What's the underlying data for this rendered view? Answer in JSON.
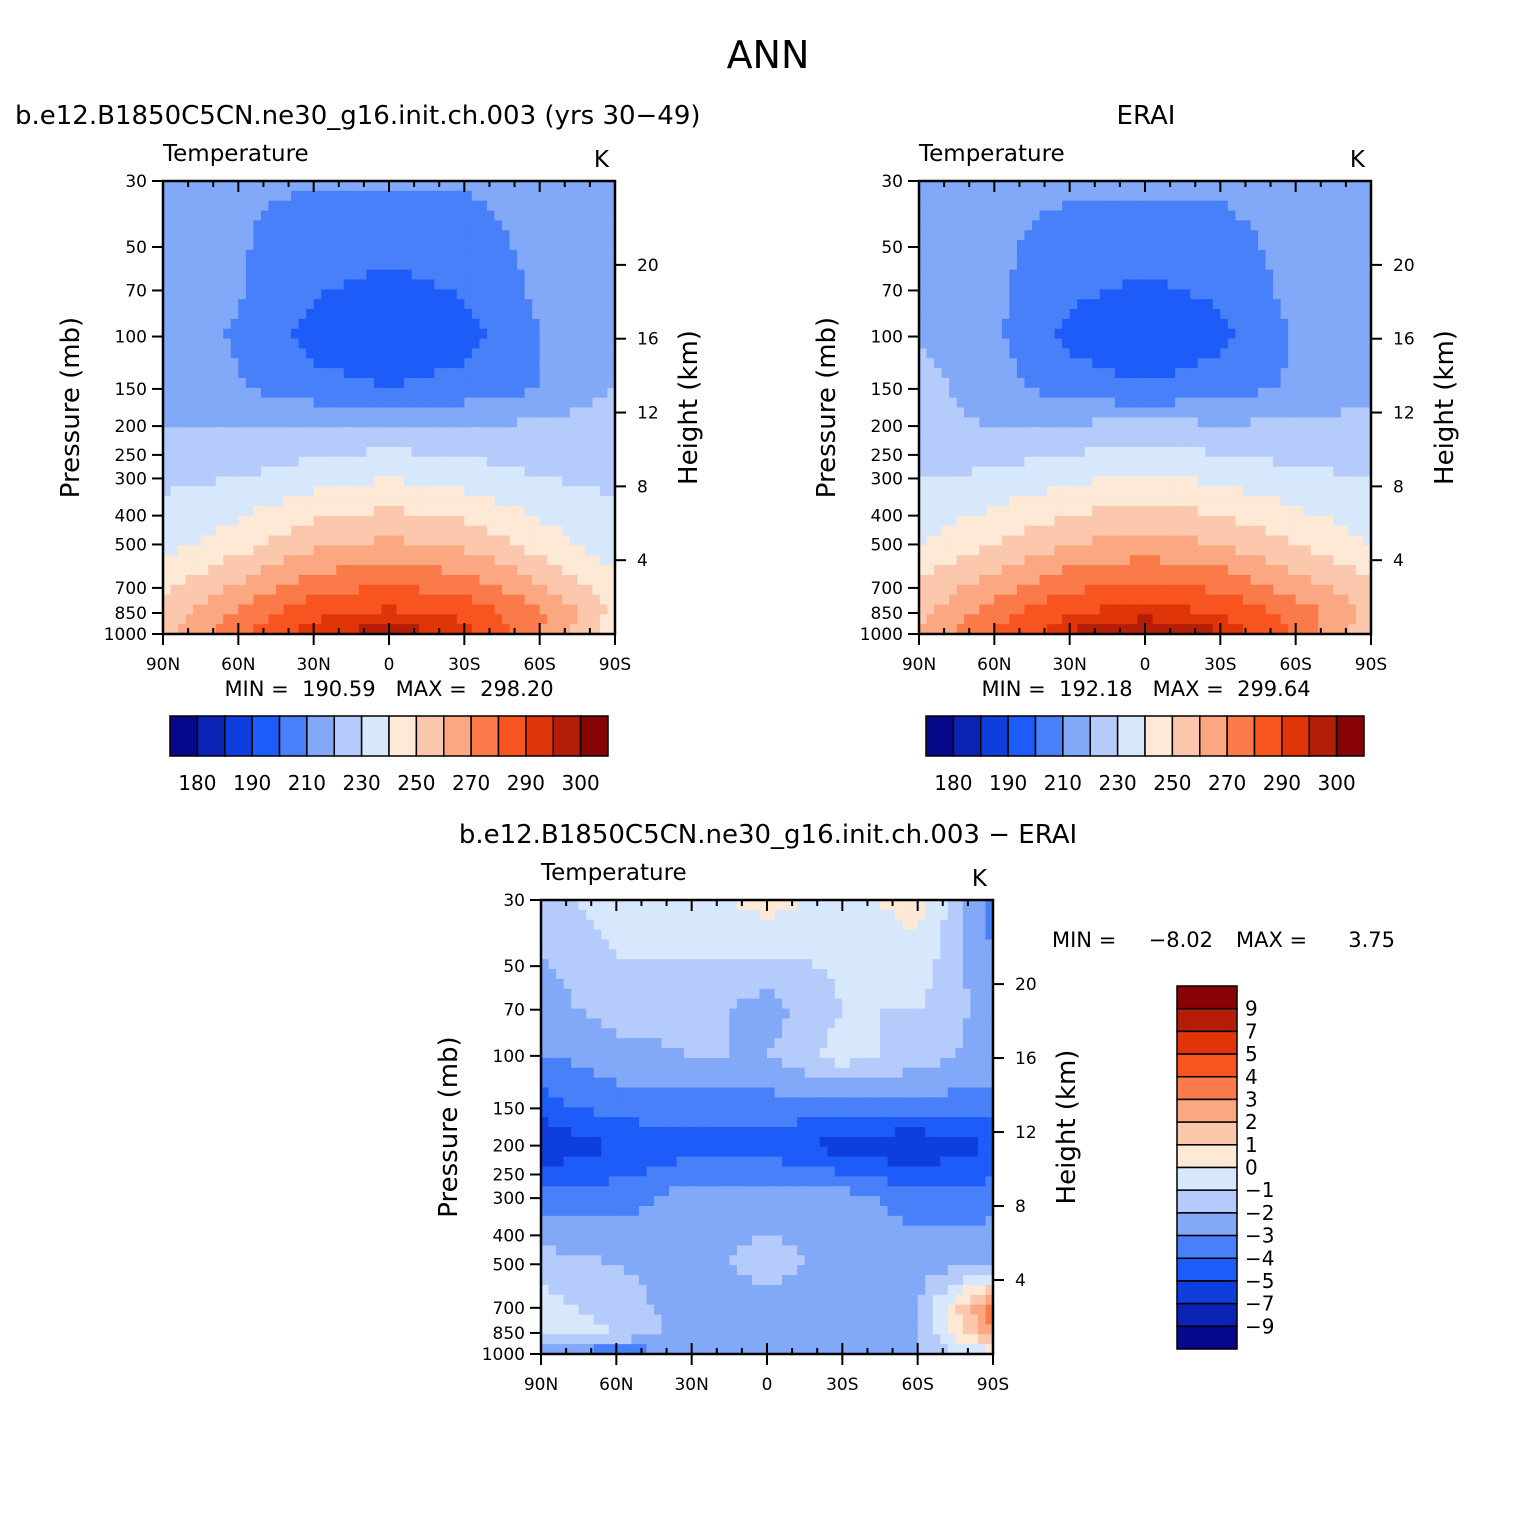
{
  "main_title": "ANN",
  "palettes": {
    "temperature": [
      "#08088c",
      "#0a23b4",
      "#0f3ede",
      "#1e5cfa",
      "#4780f8",
      "#82a8f8",
      "#b4cbfb",
      "#d7e8fc",
      "#fde9d6",
      "#fcc8ad",
      "#fba882",
      "#fa7a4a",
      "#f85420",
      "#e03508",
      "#b41e08",
      "#880404"
    ],
    "difference": [
      "#08088c",
      "#0a23b4",
      "#0f3ede",
      "#1e5cfa",
      "#4780f8",
      "#82a8f8",
      "#b4cbfb",
      "#d7e8fc",
      "#fde9d6",
      "#fcc8ad",
      "#fba882",
      "#fa7a4a",
      "#f85420",
      "#e03508",
      "#b41e08",
      "#880404"
    ]
  },
  "panels": {
    "model": {
      "header": "b.e12.B1850C5CN.ne30_g16.init.ch.003 (yrs 30−49)",
      "field_label": "Temperature",
      "units": "K",
      "min_max": "MIN =  190.59   MAX =  298.20",
      "colorbar_labels": [
        "180",
        "190",
        "210",
        "230",
        "250",
        "270",
        "290",
        "300"
      ]
    },
    "obs": {
      "header": "ERAI",
      "field_label": "Temperature",
      "units": "K",
      "min_max": "MIN =  192.18   MAX =  299.64",
      "colorbar_labels": [
        "180",
        "190",
        "210",
        "230",
        "250",
        "270",
        "290",
        "300"
      ]
    },
    "diff": {
      "header": "b.e12.B1850C5CN.ne30_g16.init.ch.003 − ERAI",
      "field_label": "Temperature",
      "units": "K",
      "min_label": "MIN =",
      "min_value": "−8.02",
      "max_label": "MAX =",
      "max_value": "3.75",
      "colorbar_labels": [
        "9",
        "7",
        "5",
        "4",
        "3",
        "2",
        "1",
        "0",
        "−1",
        "−2",
        "−3",
        "−4",
        "−5",
        "−7",
        "−9"
      ]
    }
  },
  "chart_data": [
    {
      "type": "heatmap",
      "name": "model",
      "title": "b.e12.B1850C5CN.ne30_g16.init.ch.003 (yrs 30−49)",
      "xlabel": "",
      "ylabel": "Pressure (mb)",
      "y2label": "Height (km)",
      "x_ticks": [
        "90N",
        "60N",
        "30N",
        "0",
        "30S",
        "60S",
        "90S"
      ],
      "y_ticks": [
        30,
        50,
        70,
        100,
        150,
        200,
        250,
        300,
        400,
        500,
        700,
        850,
        1000
      ],
      "y2_ticks": [
        4,
        8,
        12,
        16,
        20
      ],
      "y_scale": "log",
      "levels": [
        180,
        185,
        190,
        200,
        210,
        220,
        230,
        240,
        250,
        260,
        270,
        280,
        290,
        295,
        300
      ],
      "latitudes": [
        90,
        60,
        30,
        0,
        -30,
        -60,
        -90
      ],
      "pressure_levels": [
        30,
        70,
        100,
        150,
        200,
        300,
        500,
        700,
        850,
        1000
      ],
      "values": [
        [
          212,
          211,
          211,
          211,
          211,
          214,
          217
        ],
        [
          214,
          211,
          201,
          197,
          201,
          212,
          217
        ],
        [
          215,
          209,
          196,
          192,
          196,
          210,
          218
        ],
        [
          216,
          211,
          204,
          200,
          204,
          210,
          220
        ],
        [
          220,
          220,
          220,
          222,
          220,
          222,
          226
        ],
        [
          228,
          230,
          236,
          240,
          236,
          230,
          228
        ],
        [
          236,
          246,
          258,
          262,
          258,
          246,
          234
        ],
        [
          248,
          262,
          276,
          281,
          276,
          262,
          244
        ],
        [
          252,
          272,
          288,
          292,
          288,
          272,
          248
        ],
        [
          258,
          278,
          294,
          298,
          294,
          270,
          242
        ]
      ],
      "min": 190.59,
      "max": 298.2
    },
    {
      "type": "heatmap",
      "name": "obs",
      "title": "ERAI",
      "xlabel": "",
      "ylabel": "Pressure (mb)",
      "y2label": "Height (km)",
      "x_ticks": [
        "90N",
        "60N",
        "30N",
        "0",
        "30S",
        "60S",
        "90S"
      ],
      "y_ticks": [
        30,
        50,
        70,
        100,
        150,
        200,
        250,
        300,
        400,
        500,
        700,
        850,
        1000
      ],
      "y2_ticks": [
        4,
        8,
        12,
        16,
        20
      ],
      "y_scale": "log",
      "levels": [
        180,
        185,
        190,
        200,
        210,
        220,
        230,
        240,
        250,
        260,
        270,
        280,
        290,
        295,
        300
      ],
      "latitudes": [
        90,
        60,
        30,
        0,
        -30,
        -60,
        -90
      ],
      "pressure_levels": [
        30,
        70,
        100,
        150,
        200,
        300,
        500,
        700,
        850,
        1000
      ],
      "values": [
        [
          213,
          212,
          212,
          212,
          212,
          214,
          217
        ],
        [
          215,
          212,
          202,
          198,
          202,
          213,
          217
        ],
        [
          219,
          212,
          197,
          193,
          197,
          211,
          217
        ],
        [
          224,
          214,
          205,
          201,
          205,
          212,
          216
        ],
        [
          222,
          220,
          221,
          224,
          221,
          222,
          224
        ],
        [
          230,
          232,
          238,
          242,
          238,
          232,
          230
        ],
        [
          240,
          250,
          260,
          264,
          260,
          250,
          240
        ],
        [
          252,
          266,
          278,
          283,
          278,
          266,
          252
        ],
        [
          256,
          276,
          290,
          294,
          290,
          276,
          258
        ],
        [
          262,
          282,
          296,
          299,
          296,
          278,
          250
        ]
      ],
      "min": 192.18,
      "max": 299.64
    },
    {
      "type": "heatmap",
      "name": "diff",
      "title": "b.e12.B1850C5CN.ne30_g16.init.ch.003 − ERAI",
      "xlabel": "",
      "ylabel": "Pressure (mb)",
      "y2label": "Height (km)",
      "x_ticks": [
        "90N",
        "60N",
        "30N",
        "0",
        "30S",
        "60S",
        "90S"
      ],
      "y_ticks": [
        30,
        50,
        70,
        100,
        150,
        200,
        250,
        300,
        400,
        500,
        700,
        850,
        1000
      ],
      "y2_ticks": [
        4,
        8,
        12,
        16,
        20
      ],
      "y_scale": "log",
      "levels": [
        -9,
        -7,
        -5,
        -4,
        -3,
        -2,
        -1,
        0,
        1,
        2,
        3,
        4,
        5,
        7,
        9
      ],
      "latitudes": [
        90,
        60,
        30,
        0,
        -30,
        -60,
        -90
      ],
      "pressure_levels": [
        30,
        70,
        100,
        150,
        200,
        300,
        500,
        700,
        850,
        1000
      ],
      "values": [
        [
          -1.5,
          -0.5,
          -0.5,
          0.5,
          -0.5,
          0.5,
          -3.5
        ],
        [
          -2.5,
          -1.5,
          -1.5,
          -2.5,
          -1.0,
          -1.0,
          -2.5
        ],
        [
          -3.0,
          -2.5,
          -2.0,
          -2.0,
          -0.5,
          -1.5,
          -2.5
        ],
        [
          -4.5,
          -3.5,
          -3.5,
          -3.5,
          -3.5,
          -3.5,
          -3.5
        ],
        [
          -6.0,
          -5.0,
          -4.5,
          -4.5,
          -5.5,
          -6.0,
          -5.0
        ],
        [
          -3.5,
          -3.5,
          -2.5,
          -2.5,
          -2.5,
          -3.5,
          -3.5
        ],
        [
          -1.5,
          -2.0,
          -2.5,
          -1.5,
          -2.5,
          -2.5,
          -2.0
        ],
        [
          -0.5,
          -1.5,
          -2.5,
          -2.5,
          -2.5,
          -2.0,
          3.5
        ],
        [
          -0.5,
          -1.0,
          -2.5,
          -2.5,
          -2.5,
          -2.0,
          3.0
        ],
        [
          -3.0,
          -4.0,
          -2.5,
          -2.5,
          -2.5,
          -2.0,
          -0.5
        ]
      ],
      "min": -8.02,
      "max": 3.75
    }
  ]
}
